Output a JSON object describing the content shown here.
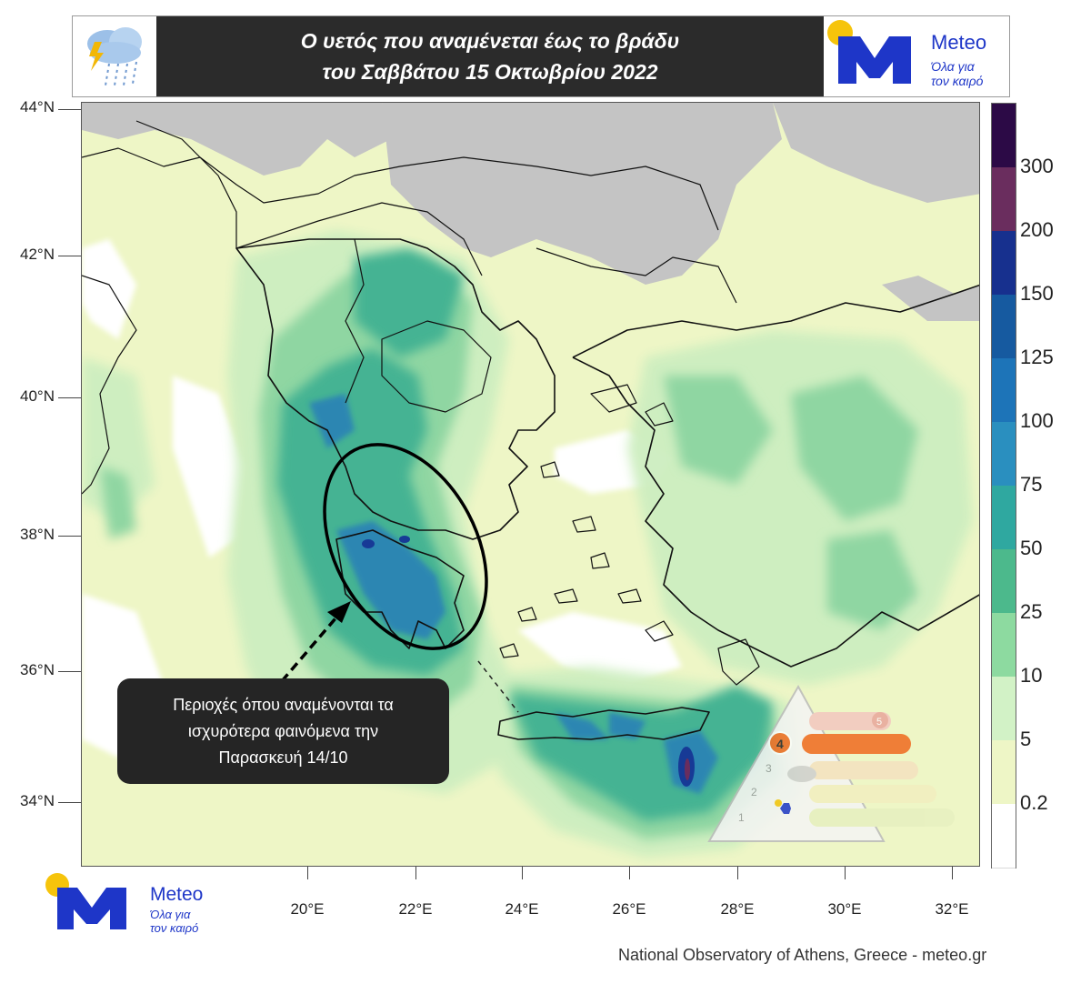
{
  "header": {
    "title_line1": "Ο υετός που αναμένεται έως το βράδυ",
    "title_line2": "του Σαββάτου 15 Οκτωβρίου 2022",
    "weather_icon": "storm-cloud-rain-icon",
    "logo": {
      "brand": "Meteo",
      "tagline_line1": "Όλα για",
      "tagline_line2": "τον καιρό"
    }
  },
  "map": {
    "lat_labels": [
      "44°N",
      "42°N",
      "40°N",
      "38°N",
      "36°N",
      "34°N"
    ],
    "lon_labels": [
      "20°E",
      "22°E",
      "24°E",
      "26°E",
      "28°E",
      "30°E",
      "32°E"
    ],
    "callout_line1": "Περιοχές όπου αναμένονται τα",
    "callout_line2": "ισχυρότερα φαινόμενα την",
    "callout_line3": "Παρασκευή 14/10",
    "highlight_shape": "ellipse-around-western-greece-peloponnese",
    "warning_level_selected": 4,
    "warning_levels": [
      "1",
      "2",
      "3",
      "4",
      "5"
    ]
  },
  "colorbar": {
    "labels": [
      "300",
      "200",
      "150",
      "125",
      "100",
      "75",
      "50",
      "25",
      "10",
      "5",
      "0.2"
    ],
    "colors": [
      "#2c0a46",
      "#6a2d5e",
      "#17308e",
      "#165aa0",
      "#1d74b8",
      "#2a8fbf",
      "#2fa8a0",
      "#4cb98c",
      "#8ddaa0",
      "#d2f2c6",
      "#eef6c6",
      "#ffffff"
    ]
  },
  "bottom_logo": {
    "brand": "Meteo",
    "tagline_line1": "Όλα για",
    "tagline_line2": "τον καιρό"
  },
  "source": "National Observatory of Athens, Greece - meteo.gr"
}
